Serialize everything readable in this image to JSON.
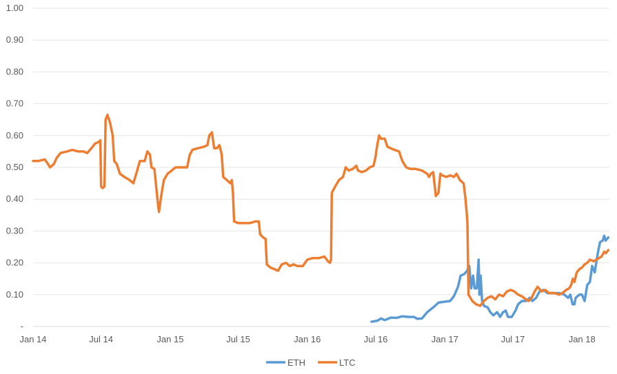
{
  "chart_data": {
    "type": "line",
    "title": "",
    "xlabel": "",
    "ylabel": "",
    "ylim": [
      0,
      1.0
    ],
    "y_ticks": [
      {
        "value": 0,
        "label": "-"
      },
      {
        "value": 0.1,
        "label": "0.10"
      },
      {
        "value": 0.2,
        "label": "0.20"
      },
      {
        "value": 0.3,
        "label": "0.30"
      },
      {
        "value": 0.4,
        "label": "0.40"
      },
      {
        "value": 0.5,
        "label": "0.50"
      },
      {
        "value": 0.6,
        "label": "0.60"
      },
      {
        "value": 0.7,
        "label": "0.70"
      },
      {
        "value": 0.8,
        "label": "0.80"
      },
      {
        "value": 0.9,
        "label": "0.90"
      },
      {
        "value": 1.0,
        "label": "1.00"
      }
    ],
    "x_range": [
      "2014-01-01",
      "2018-03-15"
    ],
    "x_ticks": [
      {
        "date": "2014-01-01",
        "label": "Jan 14"
      },
      {
        "date": "2014-07-01",
        "label": "Jul 14"
      },
      {
        "date": "2015-01-01",
        "label": "Jan 15"
      },
      {
        "date": "2015-07-01",
        "label": "Jul 15"
      },
      {
        "date": "2016-01-01",
        "label": "Jan 16"
      },
      {
        "date": "2016-07-01",
        "label": "Jul 16"
      },
      {
        "date": "2017-01-01",
        "label": "Jan 17"
      },
      {
        "date": "2017-07-01",
        "label": "Jul 17"
      },
      {
        "date": "2018-01-01",
        "label": "Jan 18"
      }
    ],
    "grid": true,
    "legend_position": "bottom",
    "series": [
      {
        "name": "ETH",
        "color": "#5B9BD5",
        "points": [
          [
            "2016-06-20",
            0.015
          ],
          [
            "2016-07-05",
            0.018
          ],
          [
            "2016-07-15",
            0.025
          ],
          [
            "2016-07-25",
            0.02
          ],
          [
            "2016-08-10",
            0.028
          ],
          [
            "2016-08-25",
            0.027
          ],
          [
            "2016-09-10",
            0.032
          ],
          [
            "2016-09-25",
            0.03
          ],
          [
            "2016-10-10",
            0.03
          ],
          [
            "2016-10-20",
            0.024
          ],
          [
            "2016-11-01",
            0.025
          ],
          [
            "2016-11-15",
            0.045
          ],
          [
            "2016-12-01",
            0.06
          ],
          [
            "2016-12-15",
            0.075
          ],
          [
            "2017-01-01",
            0.078
          ],
          [
            "2017-01-15",
            0.08
          ],
          [
            "2017-01-25",
            0.095
          ],
          [
            "2017-02-05",
            0.125
          ],
          [
            "2017-02-12",
            0.16
          ],
          [
            "2017-02-22",
            0.165
          ],
          [
            "2017-03-01",
            0.175
          ],
          [
            "2017-03-07",
            0.19
          ],
          [
            "2017-03-12",
            0.12
          ],
          [
            "2017-03-17",
            0.16
          ],
          [
            "2017-03-21",
            0.12
          ],
          [
            "2017-03-27",
            0.12
          ],
          [
            "2017-04-01",
            0.21
          ],
          [
            "2017-04-03",
            0.1
          ],
          [
            "2017-04-06",
            0.16
          ],
          [
            "2017-04-10",
            0.08
          ],
          [
            "2017-04-15",
            0.065
          ],
          [
            "2017-04-25",
            0.06
          ],
          [
            "2017-05-02",
            0.045
          ],
          [
            "2017-05-10",
            0.035
          ],
          [
            "2017-05-20",
            0.045
          ],
          [
            "2017-05-28",
            0.03
          ],
          [
            "2017-06-05",
            0.045
          ],
          [
            "2017-06-12",
            0.05
          ],
          [
            "2017-06-18",
            0.03
          ],
          [
            "2017-06-28",
            0.03
          ],
          [
            "2017-07-08",
            0.05
          ],
          [
            "2017-07-15",
            0.07
          ],
          [
            "2017-07-25",
            0.08
          ],
          [
            "2017-08-05",
            0.08
          ],
          [
            "2017-08-15",
            0.09
          ],
          [
            "2017-08-22",
            0.08
          ],
          [
            "2017-09-01",
            0.09
          ],
          [
            "2017-09-10",
            0.11
          ],
          [
            "2017-09-20",
            0.115
          ],
          [
            "2017-10-01",
            0.105
          ],
          [
            "2017-10-15",
            0.105
          ],
          [
            "2017-11-01",
            0.105
          ],
          [
            "2017-11-15",
            0.1
          ],
          [
            "2017-11-25",
            0.09
          ],
          [
            "2017-12-01",
            0.1
          ],
          [
            "2017-12-07",
            0.07
          ],
          [
            "2017-12-12",
            0.07
          ],
          [
            "2017-12-15",
            0.09
          ],
          [
            "2017-12-25",
            0.1
          ],
          [
            "2018-01-01",
            0.1
          ],
          [
            "2018-01-08",
            0.08
          ],
          [
            "2018-01-15",
            0.13
          ],
          [
            "2018-01-22",
            0.14
          ],
          [
            "2018-01-28",
            0.19
          ],
          [
            "2018-02-04",
            0.17
          ],
          [
            "2018-02-12",
            0.23
          ],
          [
            "2018-02-18",
            0.265
          ],
          [
            "2018-02-25",
            0.27
          ],
          [
            "2018-03-01",
            0.285
          ],
          [
            "2018-03-05",
            0.27
          ],
          [
            "2018-03-12",
            0.28
          ]
        ]
      },
      {
        "name": "LTC",
        "color": "#ED7D31",
        "points": [
          [
            "2014-01-01",
            0.52
          ],
          [
            "2014-01-15",
            0.52
          ],
          [
            "2014-02-01",
            0.525
          ],
          [
            "2014-02-10",
            0.51
          ],
          [
            "2014-02-15",
            0.5
          ],
          [
            "2014-02-25",
            0.51
          ],
          [
            "2014-03-05",
            0.53
          ],
          [
            "2014-03-15",
            0.545
          ],
          [
            "2014-04-01",
            0.55
          ],
          [
            "2014-04-15",
            0.555
          ],
          [
            "2014-05-01",
            0.55
          ],
          [
            "2014-05-15",
            0.55
          ],
          [
            "2014-05-25",
            0.545
          ],
          [
            "2014-06-05",
            0.56
          ],
          [
            "2014-06-15",
            0.575
          ],
          [
            "2014-06-25",
            0.58
          ],
          [
            "2014-06-29",
            0.585
          ],
          [
            "2014-07-01",
            0.44
          ],
          [
            "2014-07-05",
            0.435
          ],
          [
            "2014-07-10",
            0.44
          ],
          [
            "2014-07-13",
            0.65
          ],
          [
            "2014-07-18",
            0.665
          ],
          [
            "2014-07-25",
            0.64
          ],
          [
            "2014-08-01",
            0.6
          ],
          [
            "2014-08-05",
            0.52
          ],
          [
            "2014-08-12",
            0.51
          ],
          [
            "2014-08-20",
            0.48
          ],
          [
            "2014-09-01",
            0.47
          ],
          [
            "2014-09-15",
            0.46
          ],
          [
            "2014-09-25",
            0.45
          ],
          [
            "2014-10-05",
            0.49
          ],
          [
            "2014-10-12",
            0.52
          ],
          [
            "2014-10-25",
            0.52
          ],
          [
            "2014-11-01",
            0.55
          ],
          [
            "2014-11-08",
            0.54
          ],
          [
            "2014-11-12",
            0.5
          ],
          [
            "2014-11-20",
            0.495
          ],
          [
            "2014-11-28",
            0.4
          ],
          [
            "2014-12-02",
            0.36
          ],
          [
            "2014-12-08",
            0.41
          ],
          [
            "2014-12-15",
            0.46
          ],
          [
            "2014-12-25",
            0.48
          ],
          [
            "2015-01-05",
            0.49
          ],
          [
            "2015-01-15",
            0.5
          ],
          [
            "2015-02-01",
            0.5
          ],
          [
            "2015-02-15",
            0.5
          ],
          [
            "2015-02-22",
            0.54
          ],
          [
            "2015-03-01",
            0.555
          ],
          [
            "2015-03-15",
            0.56
          ],
          [
            "2015-04-01",
            0.565
          ],
          [
            "2015-04-10",
            0.57
          ],
          [
            "2015-04-15",
            0.6
          ],
          [
            "2015-04-22",
            0.61
          ],
          [
            "2015-04-28",
            0.56
          ],
          [
            "2015-05-05",
            0.56
          ],
          [
            "2015-05-12",
            0.57
          ],
          [
            "2015-05-18",
            0.54
          ],
          [
            "2015-05-22",
            0.47
          ],
          [
            "2015-06-01",
            0.46
          ],
          [
            "2015-06-10",
            0.45
          ],
          [
            "2015-06-14",
            0.46
          ],
          [
            "2015-06-17",
            0.42
          ],
          [
            "2015-06-20",
            0.33
          ],
          [
            "2015-07-01",
            0.325
          ],
          [
            "2015-07-15",
            0.325
          ],
          [
            "2015-08-01",
            0.325
          ],
          [
            "2015-08-15",
            0.33
          ],
          [
            "2015-08-25",
            0.33
          ],
          [
            "2015-08-28",
            0.29
          ],
          [
            "2015-09-05",
            0.28
          ],
          [
            "2015-09-12",
            0.275
          ],
          [
            "2015-09-15",
            0.195
          ],
          [
            "2015-09-25",
            0.185
          ],
          [
            "2015-10-05",
            0.18
          ],
          [
            "2015-10-15",
            0.175
          ],
          [
            "2015-10-25",
            0.195
          ],
          [
            "2015-11-05",
            0.2
          ],
          [
            "2015-11-15",
            0.19
          ],
          [
            "2015-11-25",
            0.195
          ],
          [
            "2015-12-05",
            0.19
          ],
          [
            "2015-12-20",
            0.19
          ],
          [
            "2016-01-01",
            0.21
          ],
          [
            "2016-01-15",
            0.215
          ],
          [
            "2016-02-01",
            0.215
          ],
          [
            "2016-02-15",
            0.22
          ],
          [
            "2016-02-25",
            0.205
          ],
          [
            "2016-03-01",
            0.2
          ],
          [
            "2016-03-04",
            0.21
          ],
          [
            "2016-03-06",
            0.42
          ],
          [
            "2016-03-15",
            0.44
          ],
          [
            "2016-03-25",
            0.46
          ],
          [
            "2016-04-05",
            0.47
          ],
          [
            "2016-04-12",
            0.5
          ],
          [
            "2016-04-20",
            0.49
          ],
          [
            "2016-05-01",
            0.495
          ],
          [
            "2016-05-10",
            0.505
          ],
          [
            "2016-05-15",
            0.49
          ],
          [
            "2016-05-25",
            0.485
          ],
          [
            "2016-06-05",
            0.49
          ],
          [
            "2016-06-15",
            0.5
          ],
          [
            "2016-06-25",
            0.505
          ],
          [
            "2016-06-30",
            0.53
          ],
          [
            "2016-07-05",
            0.57
          ],
          [
            "2016-07-10",
            0.6
          ],
          [
            "2016-07-15",
            0.59
          ],
          [
            "2016-07-25",
            0.59
          ],
          [
            "2016-08-01",
            0.565
          ],
          [
            "2016-08-10",
            0.56
          ],
          [
            "2016-08-20",
            0.555
          ],
          [
            "2016-09-01",
            0.55
          ],
          [
            "2016-09-10",
            0.52
          ],
          [
            "2016-09-20",
            0.5
          ],
          [
            "2016-10-01",
            0.495
          ],
          [
            "2016-10-15",
            0.495
          ],
          [
            "2016-11-01",
            0.49
          ],
          [
            "2016-11-15",
            0.48
          ],
          [
            "2016-11-20",
            0.47
          ],
          [
            "2016-11-25",
            0.48
          ],
          [
            "2016-12-01",
            0.485
          ],
          [
            "2016-12-08",
            0.41
          ],
          [
            "2016-12-15",
            0.42
          ],
          [
            "2016-12-20",
            0.48
          ],
          [
            "2016-12-25",
            0.475
          ],
          [
            "2017-01-05",
            0.47
          ],
          [
            "2017-01-15",
            0.475
          ],
          [
            "2017-01-25",
            0.47
          ],
          [
            "2017-02-01",
            0.48
          ],
          [
            "2017-02-10",
            0.46
          ],
          [
            "2017-02-20",
            0.45
          ],
          [
            "2017-02-25",
            0.4
          ],
          [
            "2017-03-02",
            0.33
          ],
          [
            "2017-03-05",
            0.1
          ],
          [
            "2017-03-15",
            0.08
          ],
          [
            "2017-03-25",
            0.07
          ],
          [
            "2017-04-05",
            0.065
          ],
          [
            "2017-04-15",
            0.08
          ],
          [
            "2017-04-25",
            0.09
          ],
          [
            "2017-05-05",
            0.095
          ],
          [
            "2017-05-15",
            0.085
          ],
          [
            "2017-05-25",
            0.1
          ],
          [
            "2017-06-05",
            0.095
          ],
          [
            "2017-06-15",
            0.11
          ],
          [
            "2017-06-25",
            0.115
          ],
          [
            "2017-07-05",
            0.11
          ],
          [
            "2017-07-15",
            0.1
          ],
          [
            "2017-07-25",
            0.095
          ],
          [
            "2017-08-05",
            0.085
          ],
          [
            "2017-08-12",
            0.08
          ],
          [
            "2017-08-20",
            0.09
          ],
          [
            "2017-08-28",
            0.11
          ],
          [
            "2017-09-05",
            0.125
          ],
          [
            "2017-09-15",
            0.11
          ],
          [
            "2017-09-25",
            0.115
          ],
          [
            "2017-10-05",
            0.105
          ],
          [
            "2017-10-20",
            0.105
          ],
          [
            "2017-11-01",
            0.1
          ],
          [
            "2017-11-10",
            0.105
          ],
          [
            "2017-11-20",
            0.115
          ],
          [
            "2017-11-28",
            0.12
          ],
          [
            "2017-12-03",
            0.13
          ],
          [
            "2017-12-08",
            0.15
          ],
          [
            "2017-12-12",
            0.14
          ],
          [
            "2017-12-18",
            0.17
          ],
          [
            "2017-12-25",
            0.18
          ],
          [
            "2018-01-01",
            0.185
          ],
          [
            "2018-01-08",
            0.195
          ],
          [
            "2018-01-15",
            0.2
          ],
          [
            "2018-01-22",
            0.21
          ],
          [
            "2018-02-01",
            0.205
          ],
          [
            "2018-02-08",
            0.21
          ],
          [
            "2018-02-15",
            0.215
          ],
          [
            "2018-02-22",
            0.22
          ],
          [
            "2018-03-01",
            0.235
          ],
          [
            "2018-03-05",
            0.23
          ],
          [
            "2018-03-12",
            0.24
          ]
        ]
      }
    ]
  }
}
